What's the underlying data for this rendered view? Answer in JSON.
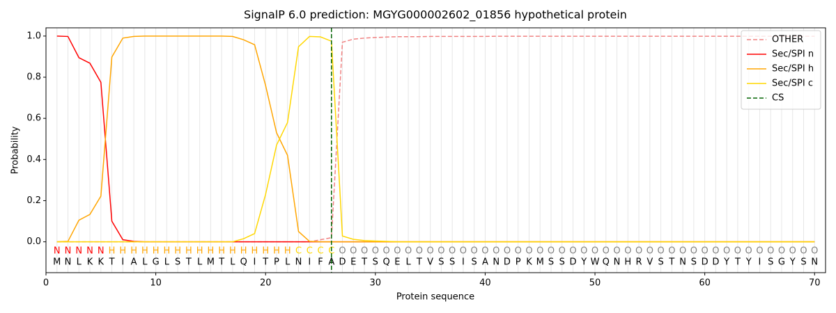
{
  "chart_data": {
    "type": "line",
    "title": "SignalP 6.0 prediction: MGYG000002602_01856 hypothetical protein",
    "x_label": "Protein sequence",
    "y_label": "Probability",
    "xlim": [
      0,
      71
    ],
    "ylim": [
      -0.15,
      1.04
    ],
    "xticks": [
      0,
      10,
      20,
      30,
      40,
      50,
      60,
      70
    ],
    "yticks": [
      {
        "value": 0,
        "label": "0.0"
      },
      {
        "value": 0.2,
        "label": "0.2"
      },
      {
        "value": 0.4,
        "label": "0.4"
      },
      {
        "value": 0.6,
        "label": "0.6"
      },
      {
        "value": 0.8,
        "label": "0.8"
      },
      {
        "value": 1,
        "label": "1.0"
      }
    ],
    "grid": true,
    "legend": "upper right",
    "x": [
      1,
      2,
      3,
      4,
      5,
      6,
      7,
      8,
      9,
      10,
      11,
      12,
      13,
      14,
      15,
      16,
      17,
      18,
      19,
      20,
      21,
      22,
      23,
      24,
      25,
      26,
      27,
      28,
      29,
      30,
      31,
      32,
      33,
      34,
      35,
      36,
      37,
      38,
      39,
      40,
      41,
      42,
      43,
      44,
      45,
      46,
      47,
      48,
      49,
      50,
      51,
      52,
      53,
      54,
      55,
      56,
      57,
      58,
      59,
      60,
      61,
      62,
      63,
      64,
      65,
      66,
      67,
      68,
      69,
      70
    ],
    "sequence": [
      "M",
      "N",
      "L",
      "K",
      "K",
      "T",
      "I",
      "A",
      "L",
      "G",
      "L",
      "S",
      "T",
      "L",
      "M",
      "T",
      "L",
      "Q",
      "I",
      "T",
      "P",
      "L",
      "N",
      "I",
      "F",
      "A",
      "D",
      "E",
      "T",
      "S",
      "Q",
      "E",
      "L",
      "T",
      "V",
      "S",
      "S",
      "I",
      "S",
      "A",
      "N",
      "D",
      "P",
      "K",
      "M",
      "S",
      "S",
      "D",
      "Y",
      "W",
      "Q",
      "N",
      "H",
      "R",
      "V",
      "S",
      "T",
      "N",
      "S",
      "D",
      "D",
      "Y",
      "T",
      "Y",
      "I",
      "S",
      "G",
      "Y",
      "S",
      "N"
    ],
    "regions": [
      "N",
      "N",
      "N",
      "N",
      "N",
      "H",
      "H",
      "H",
      "H",
      "H",
      "H",
      "H",
      "H",
      "H",
      "H",
      "H",
      "H",
      "H",
      "H",
      "H",
      "H",
      "H",
      "C",
      "C",
      "C",
      "C",
      "O",
      "O",
      "O",
      "O",
      "O",
      "O",
      "O",
      "O",
      "O",
      "O",
      "O",
      "O",
      "O",
      "O",
      "O",
      "O",
      "O",
      "O",
      "O",
      "O",
      "O",
      "O",
      "O",
      "O",
      "O",
      "O",
      "O",
      "O",
      "O",
      "O",
      "O",
      "O",
      "O",
      "O",
      "O",
      "O",
      "O",
      "O",
      "O",
      "O",
      "O",
      "O",
      "O",
      "O"
    ],
    "region_colors": {
      "N": "#ff0000",
      "H": "#ffa500",
      "C": "#ffd700",
      "O": "#808080"
    },
    "series": [
      {
        "name": "OTHER",
        "color": "#f08080",
        "dashed": true,
        "values": [
          0,
          0,
          0,
          0,
          0,
          0,
          0,
          0,
          0,
          0,
          0,
          0,
          0,
          0,
          0,
          0,
          0,
          0,
          0,
          0,
          0,
          0,
          0,
          0,
          0.01,
          0.02,
          0.97,
          0.985,
          0.99,
          0.993,
          0.995,
          0.997,
          0.997,
          0.997,
          0.998,
          0.998,
          0.998,
          0.998,
          0.998,
          0.998,
          0.999,
          0.999,
          0.999,
          0.999,
          0.999,
          0.999,
          0.999,
          0.999,
          0.999,
          0.999,
          0.999,
          0.999,
          0.999,
          0.999,
          0.999,
          0.999,
          0.999,
          0.999,
          0.999,
          0.999,
          0.999,
          0.999,
          0.999,
          0.999,
          0.999,
          0.999,
          0.999,
          0.999,
          0.999,
          0.999
        ]
      },
      {
        "name": "Sec/SPI n",
        "color": "#ff0000",
        "values": [
          1.0,
          0.998,
          0.895,
          0.868,
          0.775,
          0.1,
          0.01,
          0.002,
          0,
          0,
          0,
          0,
          0,
          0,
          0,
          0,
          0,
          0,
          0,
          0,
          0,
          0,
          0,
          0,
          0,
          0,
          0,
          0,
          0,
          0,
          0,
          0,
          0,
          0,
          0,
          0,
          0,
          0,
          0,
          0,
          0,
          0,
          0,
          0,
          0,
          0,
          0,
          0,
          0,
          0,
          0,
          0,
          0,
          0,
          0,
          0,
          0,
          0,
          0,
          0,
          0,
          0,
          0,
          0,
          0,
          0,
          0,
          0,
          0,
          0
        ]
      },
      {
        "name": "Sec/SPI h",
        "color": "#ffa500",
        "values": [
          0,
          0.002,
          0.105,
          0.133,
          0.222,
          0.898,
          0.99,
          0.998,
          1,
          1,
          1,
          1,
          1,
          1,
          1,
          1,
          0.998,
          0.982,
          0.958,
          0.76,
          0.53,
          0.42,
          0.05,
          0.002,
          0,
          0,
          0,
          0,
          0,
          0,
          0,
          0,
          0,
          0,
          0,
          0,
          0,
          0,
          0,
          0,
          0,
          0,
          0,
          0,
          0,
          0,
          0,
          0,
          0,
          0,
          0,
          0,
          0,
          0,
          0,
          0,
          0,
          0,
          0,
          0,
          0,
          0,
          0,
          0,
          0,
          0,
          0,
          0,
          0,
          0
        ]
      },
      {
        "name": "Sec/SPI c",
        "color": "#ffd700",
        "values": [
          0,
          0,
          0,
          0,
          0,
          0,
          0,
          0,
          0,
          0,
          0,
          0,
          0,
          0,
          0,
          0,
          0,
          0.015,
          0.04,
          0.23,
          0.47,
          0.58,
          0.948,
          0.998,
          0.996,
          0.975,
          0.028,
          0.012,
          0.006,
          0.004,
          0.002,
          0,
          0,
          0,
          0,
          0,
          0,
          0,
          0,
          0,
          0,
          0,
          0,
          0,
          0,
          0,
          0,
          0,
          0,
          0,
          0,
          0,
          0,
          0,
          0,
          0,
          0,
          0,
          0,
          0,
          0,
          0,
          0,
          0,
          0,
          0,
          0,
          0,
          0,
          0
        ]
      }
    ],
    "cs": {
      "name": "CS",
      "x": 26,
      "color": "#006400"
    }
  }
}
